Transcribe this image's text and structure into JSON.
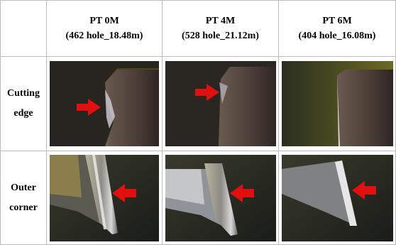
{
  "table": {
    "columns": [
      {
        "title": "PT 0M",
        "subtitle": "(462 hole_18.48m)"
      },
      {
        "title": "PT 4M",
        "subtitle": "(528 hole_21.12m)"
      },
      {
        "title": "PT 6M",
        "subtitle": "(404 hole_16.08m)"
      }
    ],
    "rows": [
      {
        "label": "Cutting edge"
      },
      {
        "label": "Outer corner"
      }
    ]
  }
}
